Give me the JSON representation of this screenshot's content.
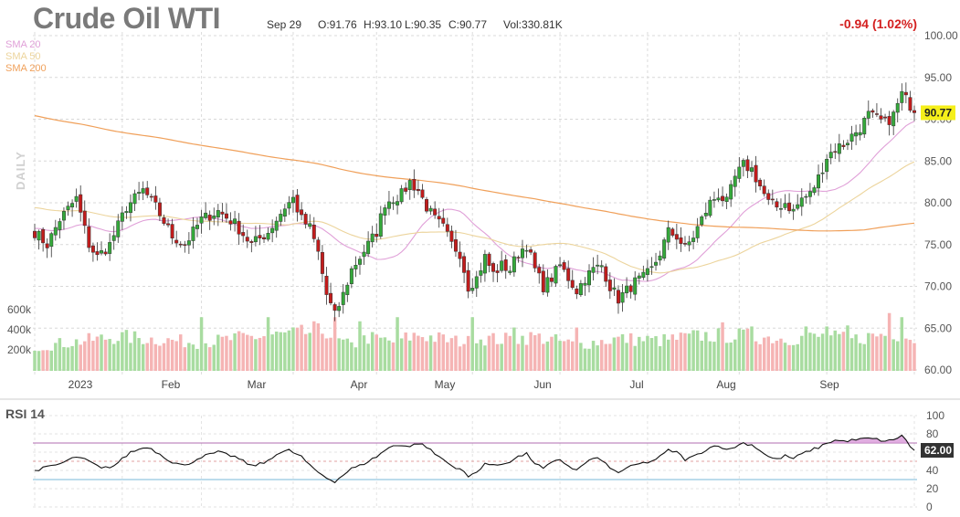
{
  "header": {
    "title": "Crude Oil WTI",
    "date": "Sep 29",
    "open": "O:91.76",
    "high": "H:93.10",
    "low": "L:90.35",
    "close": "C:90.77",
    "volume": "Vol:330.81K",
    "change": "-0.94 (1.02%)"
  },
  "indicators": {
    "sma20": "SMA 20",
    "sma50": "SMA 50",
    "sma200": "SMA 200",
    "daily": "DAILY",
    "rsi": "RSI 14"
  },
  "colors": {
    "up": "#34a93a",
    "down": "#c21c1c",
    "vol_up": "#a8dca0",
    "vol_down": "#f5b4b4",
    "sma20": "#e0a0d8",
    "sma50": "#ecd49c",
    "sma200": "#f0a05a",
    "rsi_line": "#111111",
    "rsi_fill": "#d899d8",
    "rsi_upper": "#b06cb0",
    "rsi_lower": "#78b8d8",
    "price_tag": "#f5ef1a",
    "change_text": "#d42020"
  },
  "chart_data": {
    "type": "candlestick",
    "title": "Crude Oil WTI",
    "price_axis": {
      "ticks": [
        "100.00",
        "95.00",
        "90.00",
        "85.00",
        "80.00",
        "75.00",
        "70.00",
        "65.00",
        "60.00"
      ],
      "range": [
        60,
        100
      ]
    },
    "volume_axis": {
      "ticks": [
        "600k",
        "400k",
        "200k"
      ]
    },
    "x_labels": [
      "2023",
      "Feb",
      "Mar",
      "Apr",
      "May",
      "Jun",
      "Jul",
      "Aug",
      "Sep"
    ],
    "last_price": "90.77",
    "price_anchors": [
      [
        0,
        76.5
      ],
      [
        3,
        75
      ],
      [
        6,
        78
      ],
      [
        10,
        80.5
      ],
      [
        13,
        75
      ],
      [
        15,
        73.5
      ],
      [
        18,
        75
      ],
      [
        22,
        79.5
      ],
      [
        26,
        81.5
      ],
      [
        29,
        79.5
      ],
      [
        33,
        76
      ],
      [
        36,
        75
      ],
      [
        40,
        78
      ],
      [
        44,
        79
      ],
      [
        48,
        77.5
      ],
      [
        52,
        75
      ],
      [
        56,
        76.5
      ],
      [
        60,
        79.5
      ],
      [
        62,
        80.5
      ],
      [
        64,
        78
      ],
      [
        66,
        77
      ],
      [
        68,
        74
      ],
      [
        70,
        69
      ],
      [
        72,
        66.5
      ],
      [
        74,
        69
      ],
      [
        76,
        72
      ],
      [
        78,
        73.5
      ],
      [
        80,
        75
      ],
      [
        82,
        76.5
      ],
      [
        84,
        80
      ],
      [
        86,
        80.5
      ],
      [
        88,
        81
      ],
      [
        90,
        82.5
      ],
      [
        92,
        81.5
      ],
      [
        94,
        79.5
      ],
      [
        96,
        78
      ],
      [
        98,
        77
      ],
      [
        100,
        75
      ],
      [
        102,
        74
      ],
      [
        104,
        70
      ],
      [
        106,
        71
      ],
      [
        108,
        73.5
      ],
      [
        110,
        71.5
      ],
      [
        112,
        72.5
      ],
      [
        114,
        72
      ],
      [
        116,
        74
      ],
      [
        118,
        75
      ],
      [
        120,
        72
      ],
      [
        122,
        70
      ],
      [
        124,
        71
      ],
      [
        126,
        72.5
      ],
      [
        128,
        71
      ],
      [
        130,
        69.5
      ],
      [
        132,
        71
      ],
      [
        134,
        72
      ],
      [
        136,
        72.5
      ],
      [
        138,
        70
      ],
      [
        140,
        68.5
      ],
      [
        142,
        69.5
      ],
      [
        144,
        70.5
      ],
      [
        146,
        71
      ],
      [
        148,
        72
      ],
      [
        150,
        74
      ],
      [
        152,
        76.5
      ],
      [
        154,
        76
      ],
      [
        156,
        74.5
      ],
      [
        158,
        76
      ],
      [
        160,
        78
      ],
      [
        162,
        80
      ],
      [
        164,
        81
      ],
      [
        166,
        80
      ],
      [
        168,
        83
      ],
      [
        170,
        84.5
      ],
      [
        172,
        84
      ],
      [
        174,
        82
      ],
      [
        176,
        80
      ],
      [
        178,
        79.5
      ],
      [
        180,
        80
      ],
      [
        182,
        79
      ],
      [
        184,
        80.5
      ],
      [
        186,
        81
      ],
      [
        188,
        83
      ],
      [
        190,
        85.5
      ],
      [
        192,
        86.5
      ],
      [
        194,
        87
      ],
      [
        196,
        88
      ],
      [
        198,
        89
      ],
      [
        200,
        90.5
      ],
      [
        202,
        90
      ],
      [
        204,
        89.5
      ],
      [
        206,
        90.5
      ],
      [
        208,
        93
      ],
      [
        210,
        91.7
      ],
      [
        211,
        90.77
      ]
    ],
    "rsi_axis": {
      "ticks": [
        "100",
        "80",
        "60",
        "40",
        "20",
        "0"
      ],
      "range": [
        0,
        100
      ],
      "upper": 70,
      "lower": 30
    },
    "rsi_last": "62.00",
    "rsi_anchors": [
      [
        0,
        40
      ],
      [
        6,
        47
      ],
      [
        10,
        55
      ],
      [
        13,
        50
      ],
      [
        16,
        42
      ],
      [
        19,
        45
      ],
      [
        23,
        60
      ],
      [
        27,
        66
      ],
      [
        30,
        58
      ],
      [
        33,
        49
      ],
      [
        36,
        45
      ],
      [
        40,
        55
      ],
      [
        44,
        60
      ],
      [
        48,
        55
      ],
      [
        52,
        45
      ],
      [
        55,
        48
      ],
      [
        58,
        58
      ],
      [
        61,
        62
      ],
      [
        64,
        55
      ],
      [
        66,
        45
      ],
      [
        68,
        38
      ],
      [
        70,
        32
      ],
      [
        72,
        28
      ],
      [
        74,
        35
      ],
      [
        76,
        42
      ],
      [
        78,
        45
      ],
      [
        80,
        50
      ],
      [
        82,
        55
      ],
      [
        84,
        62
      ],
      [
        86,
        67
      ],
      [
        88,
        68
      ],
      [
        90,
        66
      ],
      [
        92,
        70
      ],
      [
        94,
        66
      ],
      [
        96,
        58
      ],
      [
        98,
        52
      ],
      [
        100,
        45
      ],
      [
        102,
        42
      ],
      [
        104,
        33
      ],
      [
        106,
        38
      ],
      [
        108,
        48
      ],
      [
        110,
        45
      ],
      [
        112,
        47
      ],
      [
        114,
        50
      ],
      [
        116,
        55
      ],
      [
        118,
        58
      ],
      [
        120,
        48
      ],
      [
        122,
        42
      ],
      [
        124,
        48
      ],
      [
        126,
        52
      ],
      [
        128,
        45
      ],
      [
        130,
        40
      ],
      [
        132,
        48
      ],
      [
        134,
        53
      ],
      [
        136,
        52
      ],
      [
        138,
        42
      ],
      [
        140,
        38
      ],
      [
        142,
        42
      ],
      [
        144,
        46
      ],
      [
        146,
        48
      ],
      [
        148,
        50
      ],
      [
        150,
        55
      ],
      [
        152,
        62
      ],
      [
        154,
        60
      ],
      [
        156,
        52
      ],
      [
        158,
        55
      ],
      [
        160,
        60
      ],
      [
        162,
        65
      ],
      [
        164,
        68
      ],
      [
        166,
        62
      ],
      [
        168,
        66
      ],
      [
        170,
        70
      ],
      [
        172,
        68
      ],
      [
        174,
        62
      ],
      [
        176,
        55
      ],
      [
        178,
        52
      ],
      [
        180,
        56
      ],
      [
        182,
        53
      ],
      [
        184,
        58
      ],
      [
        186,
        62
      ],
      [
        188,
        65
      ],
      [
        190,
        70
      ],
      [
        192,
        73
      ],
      [
        194,
        72
      ],
      [
        196,
        73
      ],
      [
        198,
        74
      ],
      [
        200,
        75
      ],
      [
        202,
        74
      ],
      [
        204,
        72
      ],
      [
        206,
        73
      ],
      [
        208,
        79
      ],
      [
        210,
        66
      ],
      [
        211,
        62
      ]
    ],
    "volume_anchors": [
      [
        0,
        240
      ],
      [
        10,
        290
      ],
      [
        20,
        340
      ],
      [
        30,
        310
      ],
      [
        40,
        280
      ],
      [
        50,
        330
      ],
      [
        60,
        360
      ],
      [
        66,
        380
      ],
      [
        70,
        400
      ],
      [
        72,
        310
      ],
      [
        76,
        250
      ],
      [
        80,
        330
      ],
      [
        86,
        290
      ],
      [
        92,
        360
      ],
      [
        100,
        300
      ],
      [
        104,
        290
      ],
      [
        106,
        330
      ],
      [
        112,
        310
      ],
      [
        120,
        340
      ],
      [
        130,
        260
      ],
      [
        140,
        320
      ],
      [
        150,
        300
      ],
      [
        160,
        350
      ],
      [
        170,
        350
      ],
      [
        180,
        320
      ],
      [
        190,
        340
      ],
      [
        196,
        310
      ],
      [
        200,
        340
      ],
      [
        206,
        380
      ],
      [
        211,
        320
      ]
    ],
    "volume_spikes": {
      "40": 520,
      "45": 330,
      "56": 520,
      "67": 480,
      "68": 460,
      "72": 520,
      "78": 480,
      "87": 520,
      "105": 520,
      "115": 420,
      "130": 420,
      "165": 470,
      "172": 430,
      "185": 430,
      "190": 430,
      "195": 440,
      "205": 560,
      "208": 520
    }
  }
}
